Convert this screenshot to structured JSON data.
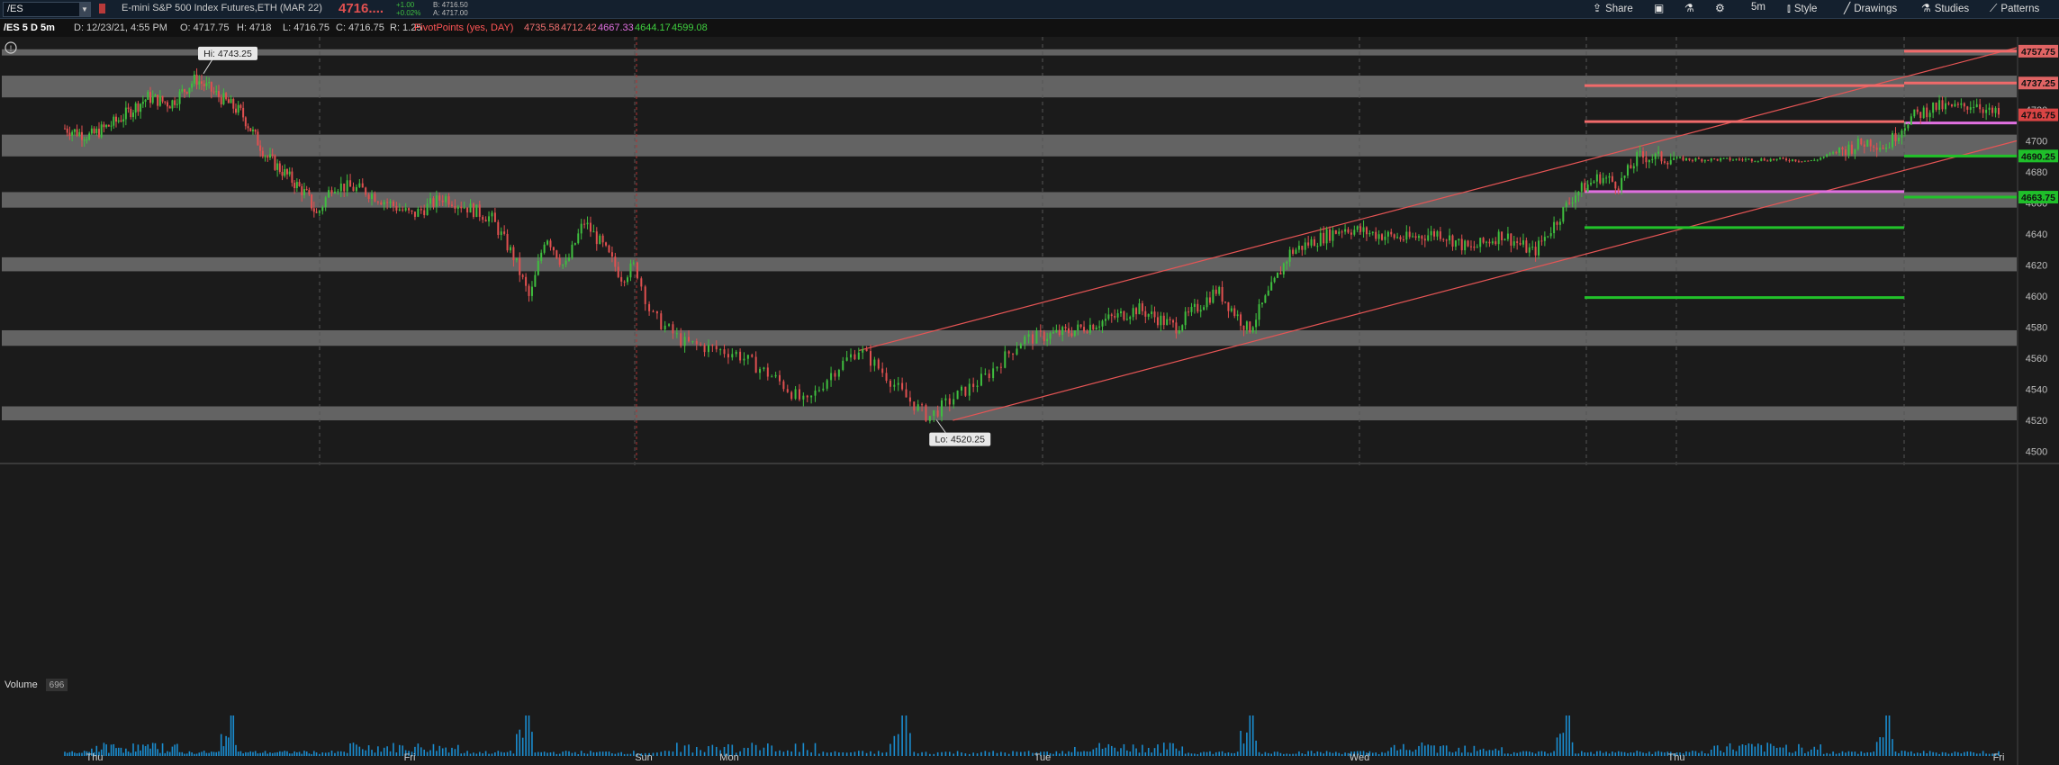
{
  "toolbar": {
    "symbol": "/ES",
    "instrument_name": "E-mini S&P 500 Index Futures,ETH (MAR 22)",
    "last_price": "4716....",
    "change_abs": "+1.00",
    "change_pct": "+0.02%",
    "bid": "B: 4716.50",
    "ask": "A: 4717.00",
    "share": "Share",
    "style": "Style",
    "drawings": "Drawings",
    "studies": "Studies",
    "patterns": "Patterns",
    "timeframe": "5m"
  },
  "info": {
    "chart_label": "/ES 5 D 5m",
    "datetime": "D: 12/23/21, 4:55 PM",
    "open": "O: 4717.75",
    "high": "H: 4718",
    "low": "L: 4716.75",
    "close": "C: 4716.75",
    "range": "R: 1.25",
    "study": "PivotPoints (yes, DAY)",
    "pivots": [
      "4735.58",
      "4712.42",
      "4667.33",
      "4644.17",
      "4599.08"
    ]
  },
  "colors": {
    "up": "#3fbf3f",
    "down": "#e05050",
    "pivot_red": "#f06a6a",
    "pivot_magenta": "#e070e0",
    "pivot_green": "#22c22a",
    "zone": "#7c7c7c",
    "channel": "#e65555",
    "volume": "#1a8ccf"
  },
  "chart_data": {
    "type": "candlestick",
    "interval": "5m",
    "days": [
      "Thu",
      "Fri",
      "Sun",
      "Mon",
      "Tue",
      "Wed",
      "Thu",
      "Fri"
    ],
    "y_ticks": [
      4500,
      4520,
      4540,
      4560,
      4580,
      4600,
      4620,
      4640,
      4660,
      4680,
      4700,
      4720
    ],
    "ylim": [
      4498,
      4760
    ],
    "high_label": "Hi: 4743.25",
    "low_label": "Lo: 4520.25",
    "price_path": [
      [
        0.0,
        4708
      ],
      [
        0.1,
        4703
      ],
      [
        0.2,
        4712
      ],
      [
        0.33,
        4728
      ],
      [
        0.42,
        4724
      ],
      [
        0.52,
        4740
      ],
      [
        0.6,
        4730
      ],
      [
        0.7,
        4718
      ],
      [
        0.8,
        4690
      ],
      [
        0.88,
        4678
      ],
      [
        0.96,
        4665
      ],
      [
        1.0,
        4652
      ],
      [
        1.05,
        4672
      ],
      [
        1.15,
        4668
      ],
      [
        1.3,
        4652
      ],
      [
        1.4,
        4664
      ],
      [
        1.55,
        4650
      ],
      [
        1.62,
        4625
      ],
      [
        1.67,
        4598
      ],
      [
        1.72,
        4640
      ],
      [
        1.78,
        4618
      ],
      [
        1.84,
        4648
      ],
      [
        1.9,
        4632
      ],
      [
        1.96,
        4612
      ],
      [
        2.0,
        4620
      ],
      [
        2.04,
        4588
      ],
      [
        2.12,
        4570
      ],
      [
        2.25,
        4563
      ],
      [
        2.35,
        4546
      ],
      [
        2.42,
        4530
      ],
      [
        2.48,
        4550
      ],
      [
        2.55,
        4566
      ],
      [
        2.62,
        4548
      ],
      [
        2.66,
        4536
      ],
      [
        2.72,
        4522
      ],
      [
        2.78,
        4534
      ],
      [
        2.86,
        4548
      ],
      [
        2.95,
        4572
      ],
      [
        3.1,
        4578
      ],
      [
        3.25,
        4588
      ],
      [
        3.3,
        4592
      ],
      [
        3.42,
        4580
      ],
      [
        3.55,
        4604
      ],
      [
        3.65,
        4578
      ],
      [
        3.72,
        4604
      ],
      [
        3.78,
        4628
      ],
      [
        3.85,
        4635
      ],
      [
        3.95,
        4644
      ],
      [
        4.05,
        4640
      ],
      [
        4.15,
        4637
      ],
      [
        4.25,
        4641
      ],
      [
        4.35,
        4630
      ],
      [
        4.45,
        4640
      ],
      [
        4.55,
        4628
      ],
      [
        4.62,
        4648
      ],
      [
        4.68,
        4666
      ],
      [
        4.76,
        4677
      ],
      [
        4.82,
        4672
      ],
      [
        4.88,
        4690
      ],
      [
        4.95,
        4689
      ],
      [
        5.05,
        4688
      ],
      [
        5.2,
        4688
      ],
      [
        5.35,
        4688
      ],
      [
        5.42,
        4687
      ],
      [
        5.5,
        4693
      ],
      [
        5.6,
        4700
      ],
      [
        5.65,
        4696
      ],
      [
        5.72,
        4714
      ],
      [
        5.8,
        4722
      ],
      [
        5.88,
        4721
      ],
      [
        5.93,
        4725
      ],
      [
        5.97,
        4718
      ],
      [
        6.0,
        4716.75
      ]
    ],
    "high_point": [
      0.55,
      4743.25
    ],
    "low_point": [
      2.74,
      4520.25
    ],
    "pivot_levels": [
      {
        "value": 4757.75,
        "color": "red",
        "from": 6.0,
        "to": 6.3
      },
      {
        "value": 4737.25,
        "color": "red",
        "from": 6.0,
        "to": 6.3
      },
      {
        "value": 4735.58,
        "color": "red",
        "from": 5.0,
        "to": 6.0
      },
      {
        "value": 4712.42,
        "color": "red",
        "from": 5.0,
        "to": 6.0
      },
      {
        "value": 4711.5,
        "color": "magenta",
        "from": 6.0,
        "to": 6.3
      },
      {
        "value": 4690.25,
        "color": "green",
        "from": 6.0,
        "to": 6.3
      },
      {
        "value": 4667.33,
        "color": "magenta",
        "from": 5.0,
        "to": 6.0
      },
      {
        "value": 4663.75,
        "color": "green",
        "from": 6.0,
        "to": 6.3
      },
      {
        "value": 4644.17,
        "color": "green",
        "from": 5.0,
        "to": 6.0
      },
      {
        "value": 4599.08,
        "color": "green",
        "from": 5.0,
        "to": 6.0
      }
    ],
    "price_tags": [
      {
        "label": "4757.75",
        "value": 4757.75,
        "kind": "red"
      },
      {
        "label": "4737.25",
        "value": 4737.25,
        "kind": "red"
      },
      {
        "label": "4716.75",
        "value": 4716.75,
        "kind": "current"
      },
      {
        "label": "4690.25",
        "value": 4690.25,
        "kind": "green"
      },
      {
        "label": "4663.75",
        "value": 4663.75,
        "kind": "green"
      }
    ],
    "zones": [
      [
        4755,
        4759
      ],
      [
        4728,
        4742
      ],
      [
        4690,
        4704
      ],
      [
        4657,
        4667
      ],
      [
        4616,
        4625
      ],
      [
        4568,
        4578
      ],
      [
        4520,
        4529
      ]
    ],
    "channel_lines": [
      [
        [
          2.55,
          4565
        ],
        [
          6.35,
          4760
        ]
      ],
      [
        [
          2.78,
          4520
        ],
        [
          6.35,
          4700
        ]
      ]
    ],
    "volume": {
      "title": "Volume",
      "value": "696"
    }
  }
}
